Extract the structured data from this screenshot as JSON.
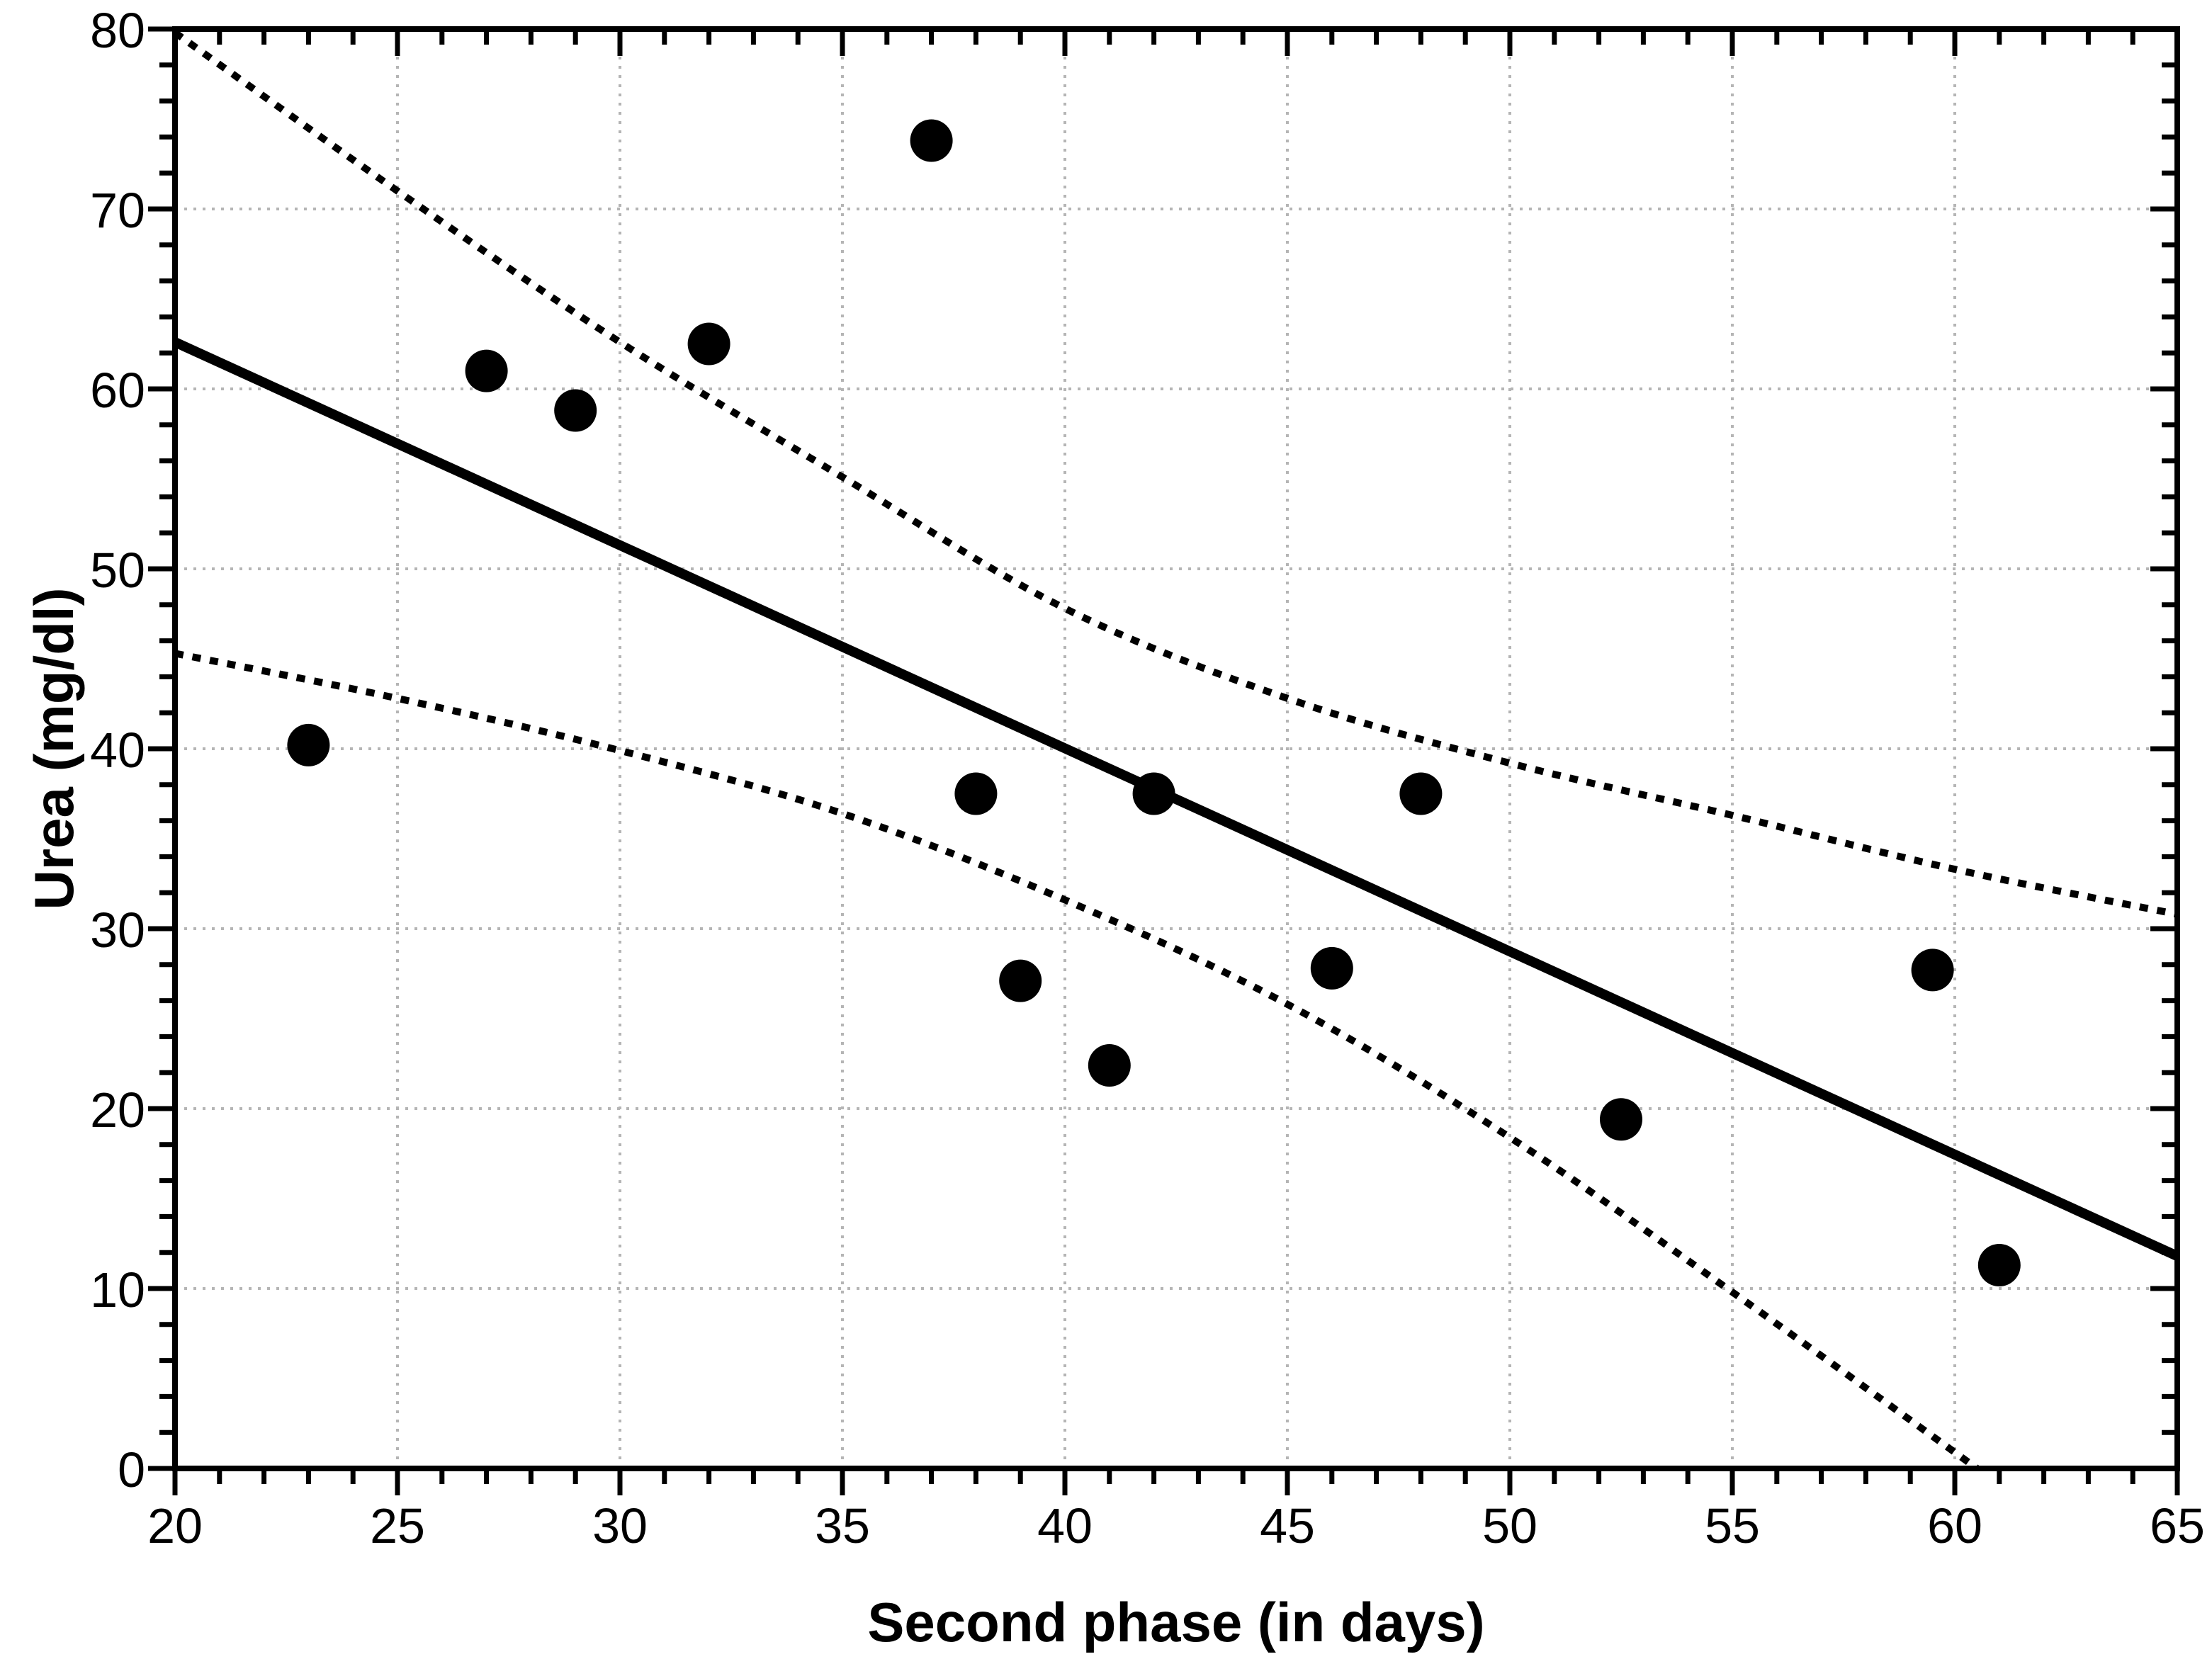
{
  "chart_data": {
    "type": "scatter",
    "title": "",
    "xlabel": "Second phase (in days)",
    "ylabel": "Urea (mg/dl)",
    "xlim": [
      20,
      65
    ],
    "ylim": [
      0,
      80
    ],
    "x_major_ticks": [
      20,
      25,
      30,
      35,
      40,
      45,
      50,
      55,
      60,
      65
    ],
    "x_minor_step": 1,
    "y_major_ticks": [
      0,
      10,
      20,
      30,
      40,
      50,
      60,
      70,
      80
    ],
    "y_minor_step": 2,
    "grid": {
      "x_lines": [
        25,
        30,
        35,
        40,
        45,
        50,
        55,
        60
      ],
      "y_lines": [
        10,
        20,
        30,
        40,
        50,
        60,
        70
      ],
      "color": "#b5b5b5",
      "style": "dotted"
    },
    "points": [
      [
        23,
        40.2
      ],
      [
        27,
        61.0
      ],
      [
        29,
        58.8
      ],
      [
        32,
        62.5
      ],
      [
        37,
        73.8
      ],
      [
        38,
        37.5
      ],
      [
        39,
        27.1
      ],
      [
        41,
        22.4
      ],
      [
        42,
        37.5
      ],
      [
        46,
        27.8
      ],
      [
        48,
        37.5
      ],
      [
        52.5,
        19.4
      ],
      [
        59.5,
        27.7
      ],
      [
        61,
        11.3
      ]
    ],
    "regression_line": {
      "x1": 20,
      "y1": 62.6,
      "x2": 65,
      "y2": 11.8
    },
    "upper_ci": [
      [
        20,
        79.8
      ],
      [
        25,
        71.0
      ],
      [
        30,
        62.6
      ],
      [
        35,
        55.1
      ],
      [
        40,
        47.8
      ],
      [
        45,
        42.8
      ],
      [
        50,
        39.2
      ],
      [
        55,
        36.3
      ],
      [
        60,
        33.3
      ],
      [
        65,
        30.8
      ]
    ],
    "lower_ci": [
      [
        20,
        45.3
      ],
      [
        25,
        42.8
      ],
      [
        30,
        39.9
      ],
      [
        35,
        36.4
      ],
      [
        40,
        31.6
      ],
      [
        45,
        25.8
      ],
      [
        50,
        18.4
      ],
      [
        55,
        9.8
      ],
      [
        60.5,
        0
      ]
    ],
    "colors": {
      "points": "#000000",
      "line": "#000000",
      "ci": "#000000",
      "axis": "#000000",
      "background": "#ffffff"
    }
  }
}
